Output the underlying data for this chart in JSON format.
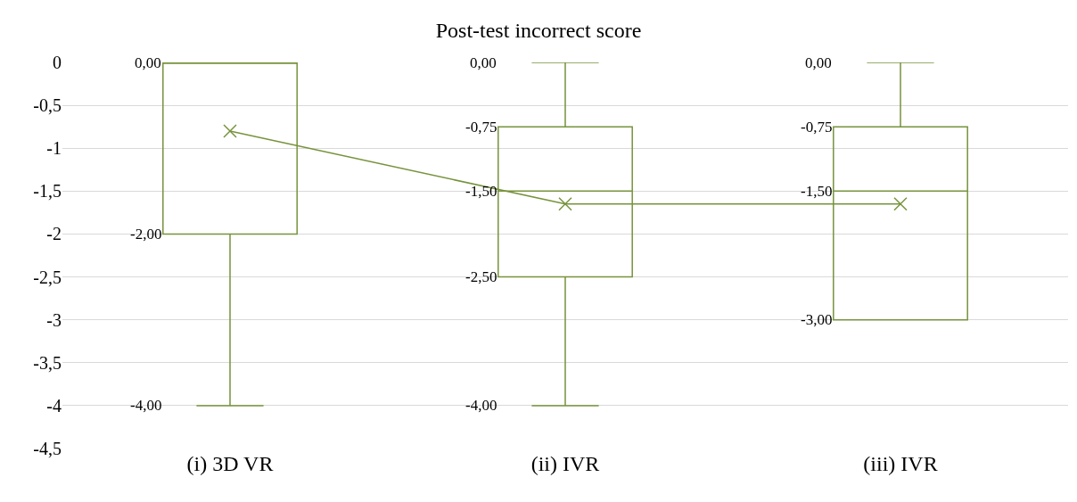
{
  "chart_data": {
    "type": "box",
    "title": "Post-test incorrect score",
    "categories": [
      "(i) 3D VR",
      "(ii) IVR",
      "(iii) IVR"
    ],
    "color": "#77933c",
    "boxes": [
      {
        "low": -4,
        "q1": -2,
        "median": 0,
        "q3": 0,
        "high": 0
      },
      {
        "low": -4,
        "q1": -2.5,
        "median": -1.5,
        "q3": -0.75,
        "high": 0
      },
      {
        "low": -3,
        "q1": -3,
        "median": -1.5,
        "q3": -0.75,
        "high": 0
      }
    ],
    "series": [
      {
        "type": "line",
        "color": "#77933c",
        "values": [
          -0.8,
          -1.65,
          -1.65
        ]
      }
    ],
    "marker": "cross",
    "annotations": [
      "0,00",
      "-2,00",
      "-4,00",
      "0,00",
      "-0,75",
      "-1,50",
      "-2,50",
      "-4,00",
      "0,00",
      "-0,75",
      "-1,50",
      "-3,00"
    ],
    "ylim": [
      -4.5,
      0
    ],
    "yticks": [
      0,
      {
        "value": -0.5,
        "label": "-0,5"
      },
      -1,
      {
        "value": -1.5,
        "label": "-1,5"
      },
      -2,
      {
        "value": -2.5,
        "label": "-2,5"
      },
      -3,
      {
        "value": -3.5,
        "label": "-3,5"
      },
      -4,
      {
        "value": -4.5,
        "label": "-4,5"
      }
    ],
    "grid": "y"
  }
}
